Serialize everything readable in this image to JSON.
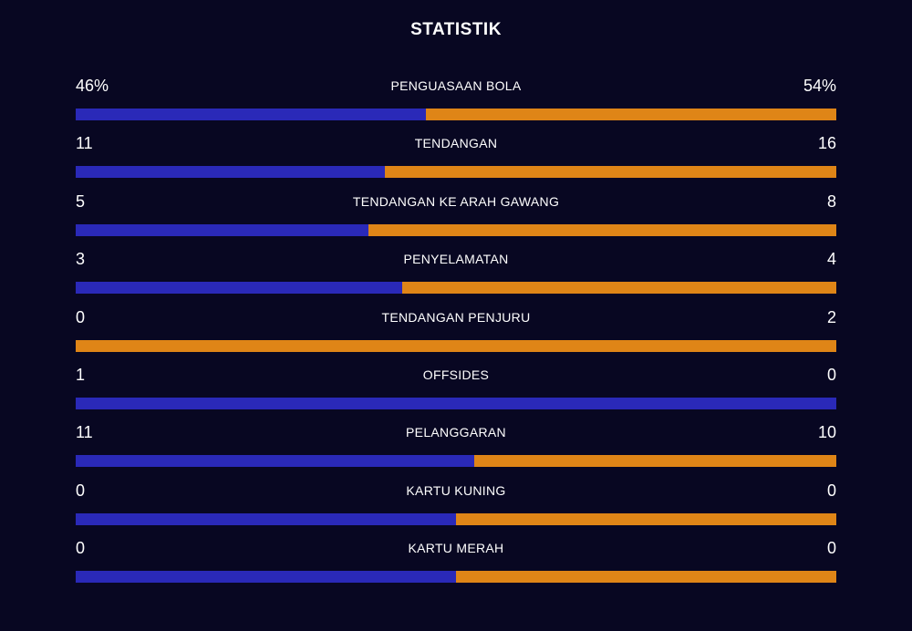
{
  "title": "STATISTIK",
  "colors": {
    "background": "#080722",
    "home": "#2a29b8",
    "away": "#df8517",
    "text": "#ffffff"
  },
  "stats": [
    {
      "label": "PENGUASAAN BOLA",
      "home": "46%",
      "away": "54%",
      "home_share": 0.46
    },
    {
      "label": "TENDANGAN",
      "home": "11",
      "away": "16",
      "home_share": 0.407
    },
    {
      "label": "TENDANGAN KE ARAH GAWANG",
      "home": "5",
      "away": "8",
      "home_share": 0.385
    },
    {
      "label": "PENYELAMATAN",
      "home": "3",
      "away": "4",
      "home_share": 0.429
    },
    {
      "label": "TENDANGAN PENJURU",
      "home": "0",
      "away": "2",
      "home_share": 0.0
    },
    {
      "label": "OFFSIDES",
      "home": "1",
      "away": "0",
      "home_share": 1.0
    },
    {
      "label": "PELANGGARAN",
      "home": "11",
      "away": "10",
      "home_share": 0.524
    },
    {
      "label": "KARTU KUNING",
      "home": "0",
      "away": "0",
      "home_share": 0.5
    },
    {
      "label": "KARTU MERAH",
      "home": "0",
      "away": "0",
      "home_share": 0.5
    }
  ]
}
